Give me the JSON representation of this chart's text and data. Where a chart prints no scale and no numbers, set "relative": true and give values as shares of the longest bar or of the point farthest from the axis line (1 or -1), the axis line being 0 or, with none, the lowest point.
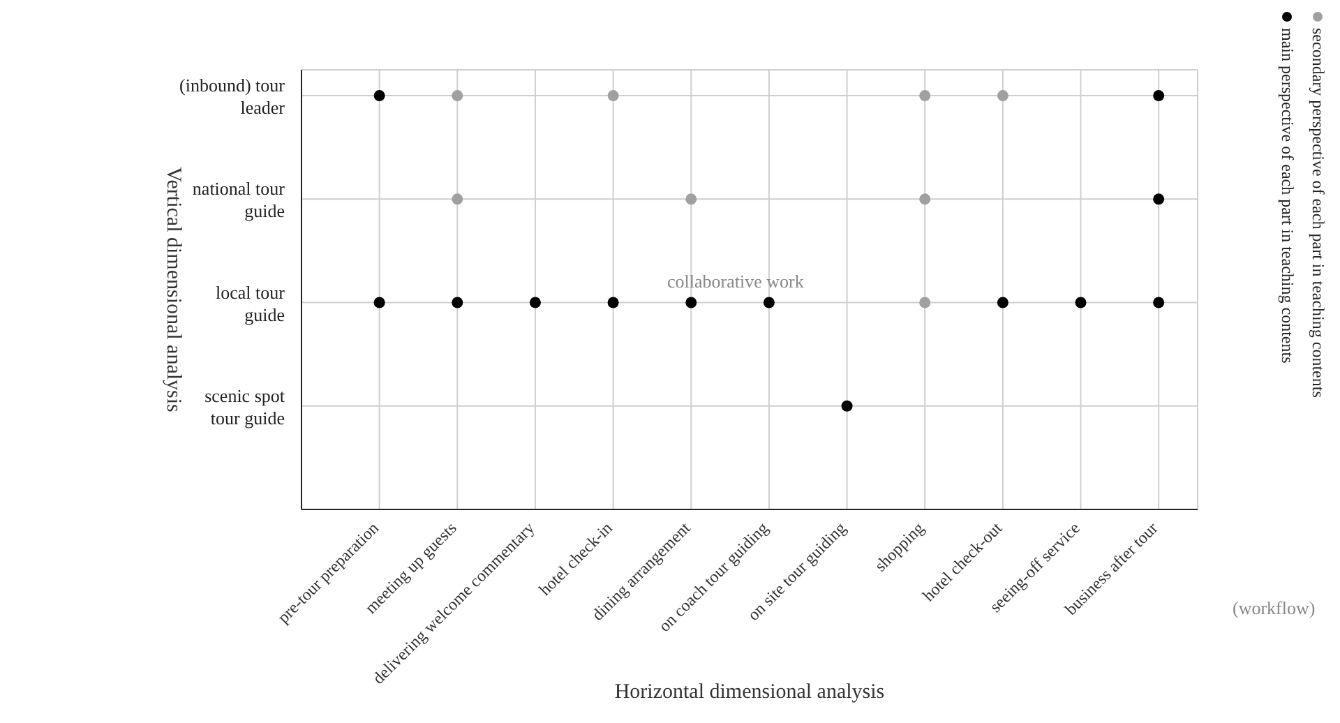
{
  "chart_data": {
    "type": "scatter",
    "categories": [
      "pre-tour preparation",
      "meeting up guests",
      "delivering welcome commentary",
      "hotel check-in",
      "dining arrangement",
      "on coach tour guiding",
      "on site tour guiding",
      "shopping",
      "hotel check-out",
      "seeing-off service",
      "business after tour"
    ],
    "y_categories": [
      "(inbound) tour leader",
      "national tour guide",
      "local tour guide",
      "scenic spot tour guide"
    ],
    "relative": true,
    "xlabel": "Horizontal dimensional analysis",
    "ylabel": "Vertical dimensional analysis",
    "series": [
      {
        "name": "main perspective of each part in teaching contents",
        "color": "#000000",
        "x": [
          "pre-tour preparation",
          "pre-tour preparation",
          "meeting up guests",
          "delivering welcome commentary",
          "hotel check-in",
          "dining arrangement",
          "on coach tour guiding",
          "on site tour guiding",
          "hotel check-out",
          "seeing-off service",
          "business after tour",
          "business after tour",
          "business after tour"
        ],
        "values": [
          1,
          0.5,
          0.5,
          0.5,
          0.5,
          0.5,
          0.5,
          0.25,
          0.5,
          0.5,
          1,
          0.75,
          0.5
        ]
      },
      {
        "name": "secondary perspective of each part in teaching contents",
        "color": "#a0a0a0",
        "x": [
          "meeting up guests",
          "meeting up guests",
          "hotel check-in",
          "dining arrangement",
          "shopping",
          "shopping",
          "shopping",
          "hotel check-out"
        ],
        "values": [
          1,
          0.75,
          1,
          0.75,
          1,
          0.75,
          0.5,
          1
        ]
      }
    ],
    "annotations": [
      "collaborative work",
      "(workflow)"
    ],
    "grid": true,
    "legend": "right",
    "marker": "circle"
  }
}
